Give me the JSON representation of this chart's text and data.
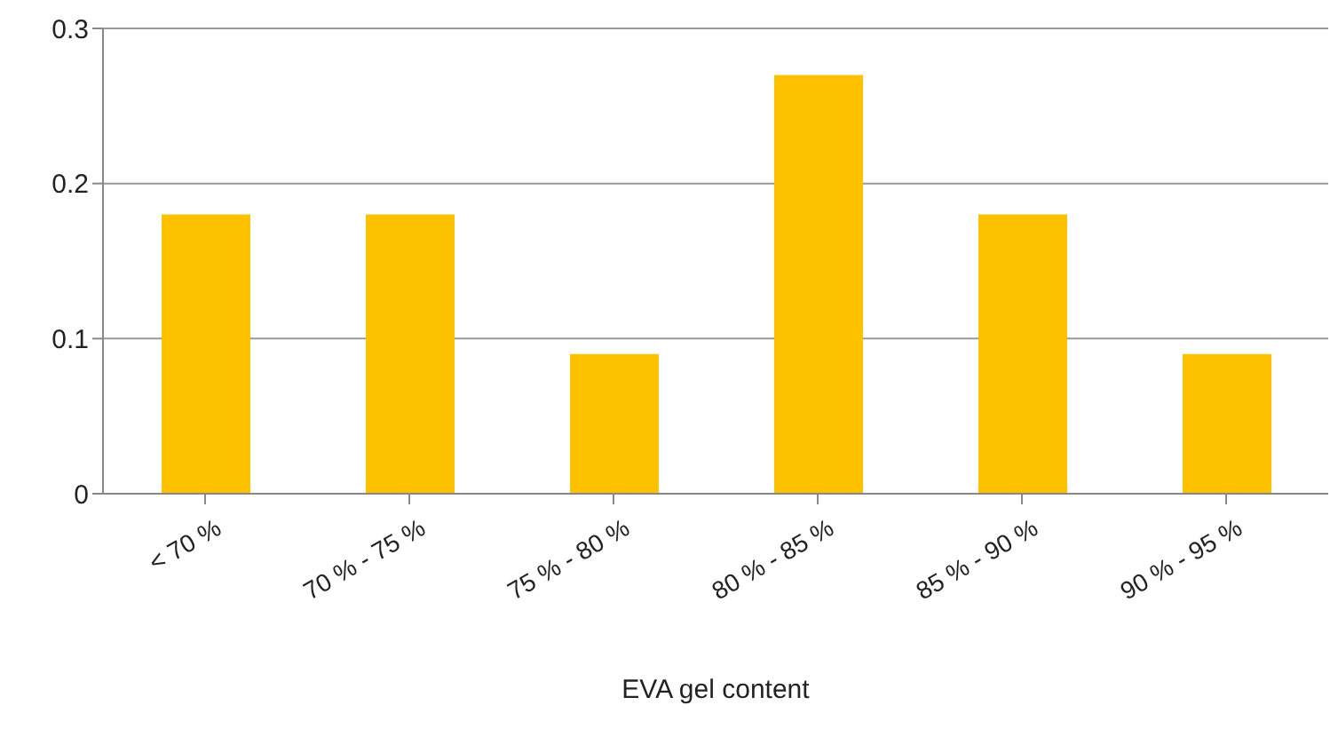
{
  "chart_data": {
    "type": "bar",
    "xlabel": "EVA gel content",
    "categories": [
      "< 70 %",
      "70 % - 75 %",
      "75 % - 80 %",
      "80 % - 85 %",
      "85 % - 90 %",
      "90 % - 95 %"
    ],
    "values": [
      0.18,
      0.18,
      0.09,
      0.27,
      0.18,
      0.09
    ],
    "color": "#fdc100",
    "ylim": [
      0,
      0.3
    ],
    "yticks": [
      0,
      0.1,
      0.2,
      0.3
    ],
    "grid": "y"
  }
}
